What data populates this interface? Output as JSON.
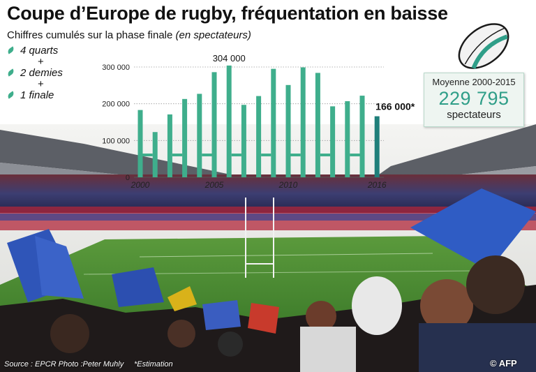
{
  "title": "Coupe d’Europe de rugby, fréquentation en baisse",
  "subtitle": "Chiffres cumulés sur la phase finale",
  "subtitle_unit": "(en spectateurs)",
  "legend": {
    "items": [
      "4 quarts",
      "2 demies",
      "1 finale"
    ],
    "separator": "+"
  },
  "average": {
    "label": "Moyenne 2000-2015",
    "value": "229 795",
    "unit": "spectateurs"
  },
  "footer": {
    "source": "Source : EPCR Photo :Peter Muhly",
    "note": "*Estimation",
    "credit": "© AFP"
  },
  "colors": {
    "bar": "#3fae8c",
    "bar_estimate": "#1f7f7a",
    "accent_text": "#2f9e88"
  },
  "chart_data": {
    "type": "bar",
    "x": [
      2000,
      2001,
      2002,
      2003,
      2004,
      2005,
      2006,
      2007,
      2008,
      2009,
      2010,
      2011,
      2012,
      2013,
      2014,
      2015,
      2016
    ],
    "values": [
      183000,
      123000,
      171000,
      213000,
      227000,
      286000,
      304000,
      197000,
      221000,
      295000,
      251000,
      299000,
      284000,
      193000,
      207000,
      222000,
      166000
    ],
    "estimated": [
      false,
      false,
      false,
      false,
      false,
      false,
      false,
      false,
      false,
      false,
      false,
      false,
      false,
      false,
      false,
      false,
      true
    ],
    "yticks": [
      0,
      100000,
      200000,
      300000
    ],
    "ytick_labels": [
      "0",
      "100 000",
      "200 000",
      "300 000"
    ],
    "xtick_labels": [
      "2000",
      "2005",
      "2010",
      "2016"
    ],
    "xtick_values": [
      2000,
      2005,
      2010,
      2016
    ],
    "ylim": [
      0,
      310000
    ],
    "annotations": [
      {
        "x": 2006,
        "text": "304 000"
      },
      {
        "x": 2016,
        "text": "166 000*"
      }
    ],
    "grid": true
  }
}
